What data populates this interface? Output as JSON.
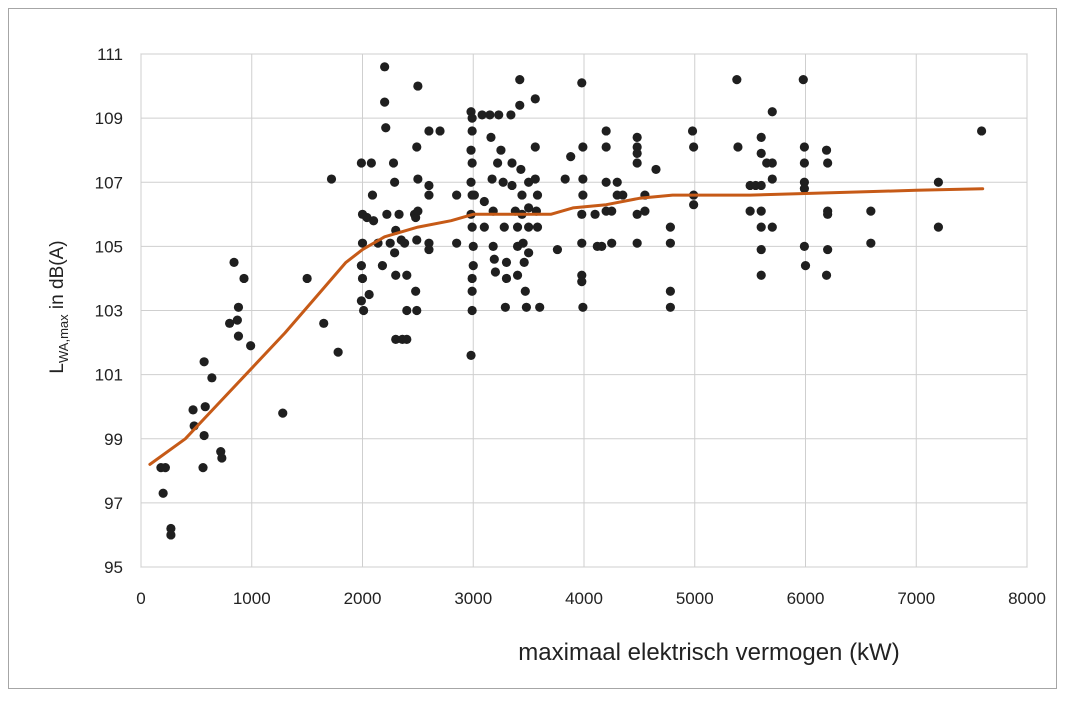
{
  "chart_data": {
    "type": "scatter",
    "title": "",
    "xlabel": "maximaal elektrisch vermogen (kW)",
    "ylabel": {
      "base": "L",
      "subscript": "WA,max",
      "suffix": " in dB(A)"
    },
    "xlim": [
      0,
      8000
    ],
    "ylim": [
      95,
      111
    ],
    "x_ticks": [
      0,
      1000,
      2000,
      3000,
      4000,
      5000,
      6000,
      7000,
      8000
    ],
    "y_ticks": [
      95,
      97,
      99,
      101,
      103,
      105,
      107,
      109,
      111
    ],
    "grid": true,
    "legend": "none",
    "colors": {
      "points": "#1f1f1f",
      "trend": "#c65a17",
      "grid": "#cfcfcf"
    },
    "series": [
      {
        "kind": "scatter",
        "points": [
          [
            180,
            98.1
          ],
          [
            220,
            98.1
          ],
          [
            200,
            97.3
          ],
          [
            270,
            96.2
          ],
          [
            270,
            96.0
          ],
          [
            470,
            99.9
          ],
          [
            480,
            99.4
          ],
          [
            570,
            101.4
          ],
          [
            580,
            100.0
          ],
          [
            570,
            99.1
          ],
          [
            560,
            98.1
          ],
          [
            640,
            100.9
          ],
          [
            720,
            98.6
          ],
          [
            730,
            98.4
          ],
          [
            800,
            102.6
          ],
          [
            840,
            104.5
          ],
          [
            870,
            102.7
          ],
          [
            880,
            103.1
          ],
          [
            880,
            102.2
          ],
          [
            930,
            104.0
          ],
          [
            990,
            101.9
          ],
          [
            1280,
            99.8
          ],
          [
            1500,
            104.0
          ],
          [
            1650,
            102.6
          ],
          [
            1720,
            107.1
          ],
          [
            1780,
            101.7
          ],
          [
            1990,
            107.6
          ],
          [
            2000,
            106.0
          ],
          [
            2000,
            105.1
          ],
          [
            1990,
            104.4
          ],
          [
            2000,
            104.0
          ],
          [
            1990,
            103.3
          ],
          [
            2010,
            103.0
          ],
          [
            2040,
            105.9
          ],
          [
            2060,
            103.5
          ],
          [
            2080,
            107.6
          ],
          [
            2090,
            106.6
          ],
          [
            2100,
            105.8
          ],
          [
            2140,
            105.1
          ],
          [
            2180,
            104.4
          ],
          [
            2200,
            110.6
          ],
          [
            2200,
            109.5
          ],
          [
            2210,
            108.7
          ],
          [
            2220,
            106.0
          ],
          [
            2250,
            105.1
          ],
          [
            2280,
            107.6
          ],
          [
            2290,
            107.0
          ],
          [
            2300,
            105.5
          ],
          [
            2290,
            104.8
          ],
          [
            2300,
            104.1
          ],
          [
            2300,
            102.1
          ],
          [
            2330,
            106.0
          ],
          [
            2350,
            105.2
          ],
          [
            2360,
            102.1
          ],
          [
            2400,
            102.1
          ],
          [
            2380,
            105.1
          ],
          [
            2400,
            104.1
          ],
          [
            2400,
            103.0
          ],
          [
            2470,
            106.0
          ],
          [
            2480,
            105.9
          ],
          [
            2490,
            108.1
          ],
          [
            2490,
            105.2
          ],
          [
            2480,
            103.6
          ],
          [
            2490,
            103.0
          ],
          [
            2500,
            110.0
          ],
          [
            2500,
            107.1
          ],
          [
            2500,
            106.1
          ],
          [
            2600,
            108.6
          ],
          [
            2600,
            106.9
          ],
          [
            2600,
            106.6
          ],
          [
            2600,
            105.1
          ],
          [
            2700,
            108.6
          ],
          [
            2600,
            104.9
          ],
          [
            2850,
            106.6
          ],
          [
            2850,
            105.1
          ],
          [
            2980,
            109.2
          ],
          [
            2990,
            109.0
          ],
          [
            2990,
            108.6
          ],
          [
            2980,
            108.0
          ],
          [
            2990,
            107.6
          ],
          [
            2980,
            107.0
          ],
          [
            2990,
            106.6
          ],
          [
            2980,
            106.0
          ],
          [
            2990,
            105.6
          ],
          [
            3000,
            105.0
          ],
          [
            3000,
            104.4
          ],
          [
            2990,
            104.0
          ],
          [
            2990,
            103.6
          ],
          [
            2990,
            103.0
          ],
          [
            2980,
            101.6
          ],
          [
            3010,
            106.6
          ],
          [
            3080,
            109.1
          ],
          [
            3100,
            105.6
          ],
          [
            3100,
            106.4
          ],
          [
            3150,
            109.1
          ],
          [
            3160,
            108.4
          ],
          [
            3170,
            107.1
          ],
          [
            3180,
            106.1
          ],
          [
            3180,
            105.0
          ],
          [
            3190,
            104.6
          ],
          [
            3200,
            104.2
          ],
          [
            3220,
            107.6
          ],
          [
            3230,
            109.1
          ],
          [
            3250,
            108.0
          ],
          [
            3270,
            107.0
          ],
          [
            3280,
            105.6
          ],
          [
            3290,
            103.1
          ],
          [
            3300,
            104.5
          ],
          [
            3300,
            104.0
          ],
          [
            3340,
            109.1
          ],
          [
            3350,
            107.6
          ],
          [
            3350,
            106.9
          ],
          [
            3380,
            106.1
          ],
          [
            3400,
            105.6
          ],
          [
            3400,
            105.0
          ],
          [
            3400,
            104.1
          ],
          [
            3420,
            110.2
          ],
          [
            3420,
            109.4
          ],
          [
            3430,
            107.4
          ],
          [
            3440,
            106.6
          ],
          [
            3440,
            106.0
          ],
          [
            3450,
            105.1
          ],
          [
            3460,
            104.5
          ],
          [
            3470,
            103.6
          ],
          [
            3480,
            103.1
          ],
          [
            3500,
            107.0
          ],
          [
            3500,
            106.2
          ],
          [
            3500,
            105.6
          ],
          [
            3500,
            104.8
          ],
          [
            3560,
            109.6
          ],
          [
            3560,
            108.1
          ],
          [
            3560,
            107.1
          ],
          [
            3580,
            106.6
          ],
          [
            3570,
            106.1
          ],
          [
            3580,
            105.6
          ],
          [
            3600,
            103.1
          ],
          [
            3760,
            104.9
          ],
          [
            3830,
            107.1
          ],
          [
            3880,
            107.8
          ],
          [
            3980,
            110.1
          ],
          [
            3990,
            108.1
          ],
          [
            3990,
            107.1
          ],
          [
            3990,
            106.6
          ],
          [
            3980,
            106.0
          ],
          [
            3980,
            105.1
          ],
          [
            3980,
            104.1
          ],
          [
            3980,
            103.9
          ],
          [
            3990,
            103.1
          ],
          [
            4100,
            106.0
          ],
          [
            4120,
            105.0
          ],
          [
            4160,
            105.0
          ],
          [
            4200,
            108.6
          ],
          [
            4200,
            108.1
          ],
          [
            4200,
            107.0
          ],
          [
            4200,
            106.1
          ],
          [
            4250,
            106.1
          ],
          [
            4250,
            105.1
          ],
          [
            4300,
            107.0
          ],
          [
            4300,
            106.6
          ],
          [
            4350,
            106.6
          ],
          [
            4480,
            108.4
          ],
          [
            4480,
            108.1
          ],
          [
            4480,
            107.9
          ],
          [
            4480,
            107.6
          ],
          [
            4480,
            106.0
          ],
          [
            4480,
            105.1
          ],
          [
            4550,
            106.6
          ],
          [
            4550,
            106.1
          ],
          [
            4650,
            107.4
          ],
          [
            4780,
            105.6
          ],
          [
            4780,
            105.1
          ],
          [
            4780,
            103.6
          ],
          [
            4780,
            103.1
          ],
          [
            4980,
            108.6
          ],
          [
            4990,
            108.1
          ],
          [
            4990,
            106.6
          ],
          [
            4990,
            106.3
          ],
          [
            5380,
            110.2
          ],
          [
            5390,
            108.1
          ],
          [
            5500,
            106.1
          ],
          [
            5500,
            106.9
          ],
          [
            5550,
            106.9
          ],
          [
            5600,
            108.4
          ],
          [
            5600,
            107.9
          ],
          [
            5600,
            106.9
          ],
          [
            5600,
            106.1
          ],
          [
            5600,
            105.6
          ],
          [
            5600,
            104.9
          ],
          [
            5600,
            104.1
          ],
          [
            5650,
            107.6
          ],
          [
            5700,
            109.2
          ],
          [
            5700,
            107.6
          ],
          [
            5700,
            107.1
          ],
          [
            5700,
            105.6
          ],
          [
            5980,
            110.2
          ],
          [
            5990,
            108.1
          ],
          [
            5990,
            107.6
          ],
          [
            5990,
            107.0
          ],
          [
            5990,
            106.8
          ],
          [
            5990,
            105.0
          ],
          [
            6000,
            104.4
          ],
          [
            6190,
            108.0
          ],
          [
            6200,
            107.6
          ],
          [
            6200,
            106.1
          ],
          [
            6200,
            106.0
          ],
          [
            6200,
            104.9
          ],
          [
            6190,
            104.1
          ],
          [
            6590,
            106.1
          ],
          [
            6590,
            105.1
          ],
          [
            7200,
            107.0
          ],
          [
            7200,
            105.6
          ],
          [
            7590,
            108.6
          ]
        ]
      },
      {
        "kind": "trend",
        "points": [
          [
            80,
            98.2
          ],
          [
            400,
            99.0
          ],
          [
            700,
            100.1
          ],
          [
            1000,
            101.2
          ],
          [
            1300,
            102.3
          ],
          [
            1600,
            103.5
          ],
          [
            1850,
            104.5
          ],
          [
            2000,
            104.9
          ],
          [
            2200,
            105.3
          ],
          [
            2500,
            105.6
          ],
          [
            2800,
            105.8
          ],
          [
            3000,
            106.0
          ],
          [
            3200,
            106.0
          ],
          [
            3500,
            106.0
          ],
          [
            3700,
            106.0
          ],
          [
            3900,
            106.2
          ],
          [
            4200,
            106.3
          ],
          [
            4500,
            106.5
          ],
          [
            4800,
            106.6
          ],
          [
            5000,
            106.6
          ],
          [
            5500,
            106.6
          ],
          [
            6000,
            106.65
          ],
          [
            6500,
            106.7
          ],
          [
            7000,
            106.75
          ],
          [
            7600,
            106.8
          ]
        ]
      }
    ]
  }
}
